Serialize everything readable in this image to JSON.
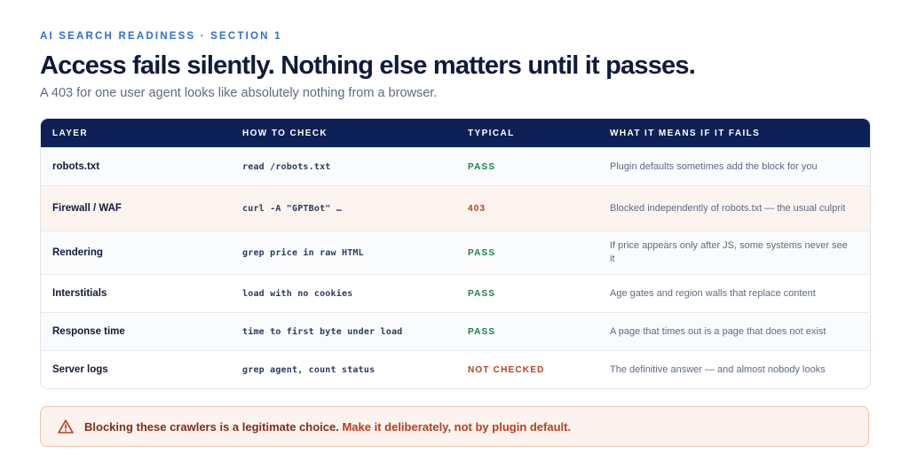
{
  "header": {
    "eyebrow": "AI SEARCH READINESS · SECTION 1",
    "title": "Access fails silently. Nothing else matters until it passes.",
    "subtitle": "A 403 for one user agent looks like absolutely nothing from a browser."
  },
  "table": {
    "columns": [
      "LAYER",
      "HOW TO CHECK",
      "TYPICAL",
      "WHAT IT MEANS IF IT FAILS"
    ],
    "rows": [
      {
        "layer": "robots.txt",
        "check": "read /robots.txt",
        "typical": "PASS",
        "meaning": "Plugin defaults sometimes add the block for you"
      },
      {
        "layer": "Firewall / WAF",
        "check": "curl -A \"GPTBot\" …",
        "typical": "403",
        "meaning": "Blocked independently of robots.txt — the usual culprit"
      },
      {
        "layer": "Rendering",
        "check": "grep price in raw HTML",
        "typical": "PASS",
        "meaning": "If price appears only after JS, some systems never see it"
      },
      {
        "layer": "Interstitials",
        "check": "load with no cookies",
        "typical": "PASS",
        "meaning": "Age gates and region walls that replace content"
      },
      {
        "layer": "Response time",
        "check": "time to first byte under load",
        "typical": "PASS",
        "meaning": "A page that times out is a page that does not exist"
      },
      {
        "layer": "Server logs",
        "check": "grep agent, count status",
        "typical": "NOT CHECKED",
        "meaning": "The definitive answer — and almost nobody looks"
      }
    ]
  },
  "callout": {
    "icon": "warning-icon",
    "text": "Blocking these crawlers is a legitimate choice.",
    "emphasis": "Make it deliberately, not by plugin default."
  },
  "colors": {
    "accent": "#2c6fd6",
    "header_bg": "#0f1f57",
    "pass": "#18834a",
    "fail": "#b5401e",
    "callout_bg": "#fdf3ee"
  }
}
